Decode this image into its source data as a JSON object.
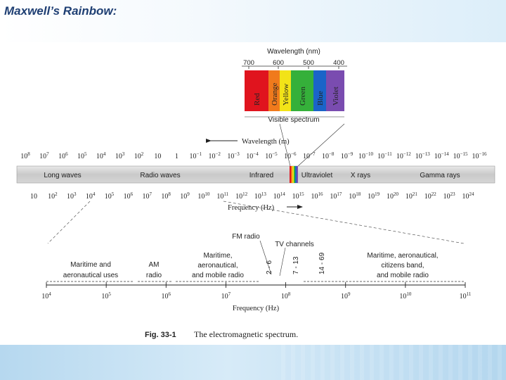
{
  "slide": {
    "title": "Maxwell’s Rainbow:"
  },
  "visible": {
    "heading": "Wavelength (nm)",
    "ticks": [
      "700",
      "600",
      "500",
      "400"
    ],
    "bands": [
      {
        "label": "Red",
        "color": "#e0141e"
      },
      {
        "label": "Orange",
        "color": "#f07a1c"
      },
      {
        "label": "Yellow",
        "color": "#f2e318"
      },
      {
        "label": "Green",
        "color": "#35b03a"
      },
      {
        "label": "Blue",
        "color": "#1a64c8"
      },
      {
        "label": "Violet",
        "color": "#7a4cb0"
      }
    ],
    "caption": "Visible spectrum"
  },
  "wavelength_axis": {
    "label": "Wavelength (m)",
    "ticks": [
      {
        "b": "10",
        "e": "8"
      },
      {
        "b": "10",
        "e": "7"
      },
      {
        "b": "10",
        "e": "6"
      },
      {
        "b": "10",
        "e": "5"
      },
      {
        "b": "10",
        "e": "4"
      },
      {
        "b": "10",
        "e": "3"
      },
      {
        "b": "10",
        "e": "2"
      },
      {
        "b": "10",
        "e": ""
      },
      {
        "b": "1",
        "e": ""
      },
      {
        "b": "10",
        "e": "−1"
      },
      {
        "b": "10",
        "e": "−2"
      },
      {
        "b": "10",
        "e": "−3"
      },
      {
        "b": "10",
        "e": "−4"
      },
      {
        "b": "10",
        "e": "−5"
      },
      {
        "b": "10",
        "e": "−6"
      },
      {
        "b": "10",
        "e": "−7"
      },
      {
        "b": "10",
        "e": "−8"
      },
      {
        "b": "10",
        "e": "−9"
      },
      {
        "b": "10",
        "e": "−10"
      },
      {
        "b": "10",
        "e": "−11"
      },
      {
        "b": "10",
        "e": "−12"
      },
      {
        "b": "10",
        "e": "−13"
      },
      {
        "b": "10",
        "e": "−14"
      },
      {
        "b": "10",
        "e": "−15"
      },
      {
        "b": "10",
        "e": "−16"
      }
    ]
  },
  "spectrum_bar": {
    "regions": [
      "Long waves",
      "Radio waves",
      "Infrared",
      "Ultraviolet",
      "X rays",
      "Gamma rays"
    ]
  },
  "frequency_axis": {
    "label": "Frequency (Hz)",
    "ticks": [
      {
        "b": "10",
        "e": ""
      },
      {
        "b": "10",
        "e": "2"
      },
      {
        "b": "10",
        "e": "3"
      },
      {
        "b": "10",
        "e": "4"
      },
      {
        "b": "10",
        "e": "5"
      },
      {
        "b": "10",
        "e": "6"
      },
      {
        "b": "10",
        "e": "7"
      },
      {
        "b": "10",
        "e": "8"
      },
      {
        "b": "10",
        "e": "9"
      },
      {
        "b": "10",
        "e": "10"
      },
      {
        "b": "10",
        "e": "11"
      },
      {
        "b": "10",
        "e": "12"
      },
      {
        "b": "10",
        "e": "13"
      },
      {
        "b": "10",
        "e": "14"
      },
      {
        "b": "10",
        "e": "15"
      },
      {
        "b": "10",
        "e": "16"
      },
      {
        "b": "10",
        "e": "17"
      },
      {
        "b": "10",
        "e": "18"
      },
      {
        "b": "10",
        "e": "19"
      },
      {
        "b": "10",
        "e": "20"
      },
      {
        "b": "10",
        "e": "21"
      },
      {
        "b": "10",
        "e": "22"
      },
      {
        "b": "10",
        "e": "23"
      },
      {
        "b": "10",
        "e": "24"
      }
    ]
  },
  "radio_detail": {
    "labels": {
      "fm_radio": "FM radio",
      "tv_channels": "TV channels",
      "ch_2_6": "2 - 6",
      "ch_7_13": "7 - 13",
      "ch_14_69": "14 - 69",
      "maritime_aero_1": "Maritime and",
      "maritime_aero_2": "aeronautical uses",
      "am_1": "AM",
      "am_2": "radio",
      "mam_1": "Maritime,",
      "mam_2": "aeronautical,",
      "mam_3": "and mobile radio",
      "macb_1": "Maritime, aeronautical,",
      "macb_2": "citizens band,",
      "macb_3": "and mobile radio"
    },
    "axis_ticks": [
      {
        "b": "10",
        "e": "4"
      },
      {
        "b": "10",
        "e": "5"
      },
      {
        "b": "10",
        "e": "6"
      },
      {
        "b": "10",
        "e": "7"
      },
      {
        "b": "10",
        "e": "8"
      },
      {
        "b": "10",
        "e": "9"
      },
      {
        "b": "10",
        "e": "10"
      },
      {
        "b": "10",
        "e": "11"
      }
    ],
    "axis_label": "Frequency (Hz)"
  },
  "figure": {
    "number": "Fig. 33-1",
    "caption": "The electromagnetic spectrum."
  }
}
